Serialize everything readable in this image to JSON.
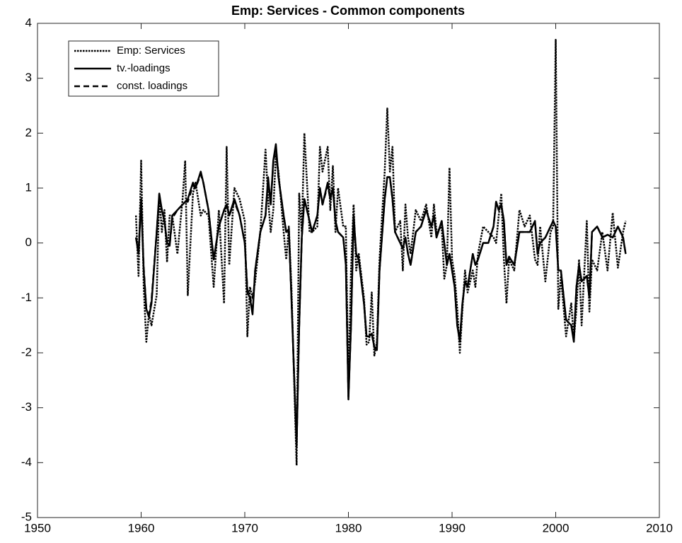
{
  "chart_data": {
    "type": "line",
    "title": "Emp: Services - Common components",
    "x": [
      1959.5,
      1959.75,
      1960,
      1960.25,
      1960.5,
      1960.75,
      1961,
      1961.5,
      1961.75,
      1962,
      1962.25,
      1962.5,
      1962.75,
      1963,
      1963.5,
      1964,
      1964.25,
      1964.5,
      1965,
      1965.25,
      1965.75,
      1966,
      1966.5,
      1967,
      1967.5,
      1968,
      1968.25,
      1968.5,
      1969,
      1969.5,
      1970,
      1970.25,
      1970.5,
      1970.75,
      1971,
      1971.5,
      1972,
      1972.25,
      1972.5,
      1972.75,
      1973,
      1973.25,
      1973.75,
      1974,
      1974.25,
      1974.5,
      1975,
      1975.25,
      1975.5,
      1975.75,
      1976.25,
      1976.5,
      1977,
      1977.25,
      1977.5,
      1978,
      1978.25,
      1978.5,
      1978.75,
      1979,
      1979.5,
      1979.75,
      1980,
      1980.25,
      1980.5,
      1980.75,
      1981,
      1981.5,
      1981.75,
      1982,
      1982.25,
      1982.5,
      1982.75,
      1983,
      1983.5,
      1983.75,
      1984,
      1984.25,
      1984.5,
      1985,
      1985.25,
      1985.5,
      1985.75,
      1986,
      1986.5,
      1987,
      1987.5,
      1988,
      1988.25,
      1988.5,
      1989,
      1989.25,
      1989.5,
      1989.75,
      1990,
      1990.25,
      1990.5,
      1990.75,
      1991,
      1991.25,
      1991.5,
      1992,
      1992.25,
      1992.5,
      1993,
      1993.5,
      1994,
      1994.25,
      1994.5,
      1994.75,
      1995,
      1995.25,
      1995.5,
      1996,
      1996.5,
      1997,
      1997.5,
      1998,
      1998.25,
      1998.5,
      1999,
      1999.5,
      1999.75,
      2000,
      2000.25,
      2000.5,
      2001,
      2001.5,
      2001.75,
      2002,
      2002.25,
      2002.5,
      2003,
      2003.25,
      2003.5,
      2004,
      2004.5,
      2005,
      2005.5,
      2006,
      2006.5,
      2006.75
    ],
    "series": [
      {
        "name": "Emp: Services",
        "color": "#000000",
        "style": "dotted",
        "values": [
          0.5,
          -0.6,
          1.5,
          -0.8,
          -1.8,
          -1.3,
          -1.5,
          -0.95,
          0.9,
          0.2,
          0.6,
          -0.35,
          0.5,
          0.5,
          -0.2,
          0.8,
          1.5,
          -0.95,
          0.9,
          1.1,
          0.5,
          0.6,
          0.5,
          -0.8,
          0.6,
          -1.1,
          1.75,
          -0.4,
          1.0,
          0.8,
          0.4,
          -1.7,
          -0.8,
          -1.0,
          -0.7,
          0.2,
          1.7,
          0.8,
          0.2,
          0.6,
          1.6,
          1.3,
          0.2,
          -0.3,
          0.3,
          -0.8,
          -4.05,
          0.9,
          0.2,
          2.0,
          0.2,
          0.2,
          0.3,
          1.75,
          1.3,
          1.75,
          0.6,
          1.4,
          0.2,
          1.0,
          0.3,
          0.3,
          -2.65,
          -0.5,
          0.7,
          -0.5,
          -0.2,
          -1.0,
          -1.85,
          -1.8,
          -0.9,
          -2.05,
          -1.8,
          -0.3,
          1.3,
          2.45,
          1.3,
          1.75,
          0.2,
          0.4,
          -0.5,
          0.7,
          0.1,
          -0.2,
          0.6,
          0.4,
          0.7,
          0.1,
          0.7,
          0.2,
          0.3,
          -0.65,
          -0.4,
          1.37,
          -0.3,
          -0.6,
          -1.2,
          -2.0,
          -1.2,
          -0.5,
          -0.9,
          -0.5,
          -0.8,
          -0.2,
          0.3,
          0.2,
          0.1,
          0.0,
          0.5,
          0.9,
          -0.3,
          -1.1,
          -0.3,
          -0.5,
          0.6,
          0.3,
          0.5,
          -0.3,
          -0.4,
          0.3,
          -0.7,
          0.2,
          0.3,
          3.7,
          -1.2,
          -0.6,
          -1.7,
          -1.1,
          -1.75,
          -1.2,
          -0.3,
          -1.5,
          0.4,
          -1.25,
          -0.3,
          -0.5,
          0.2,
          -0.5,
          0.55,
          -0.45,
          0.2,
          0.4
        ]
      },
      {
        "name": "tv.-loadings",
        "color": "#000000",
        "style": "solid",
        "values": [
          0.1,
          -0.2,
          0.8,
          -0.5,
          -1.2,
          -1.35,
          -1.1,
          0.2,
          0.9,
          0.6,
          0.4,
          0.0,
          -0.05,
          0.5,
          0.6,
          0.7,
          0.75,
          0.8,
          1.1,
          1.0,
          1.3,
          1.1,
          0.6,
          -0.3,
          0.3,
          0.6,
          0.7,
          0.5,
          0.8,
          0.5,
          0.0,
          -0.9,
          -1.0,
          -1.3,
          -0.5,
          0.2,
          0.5,
          1.2,
          0.7,
          1.5,
          1.8,
          1.2,
          0.5,
          0.2,
          0.25,
          -1.0,
          -3.7,
          -1.5,
          0.1,
          0.8,
          0.4,
          0.2,
          0.5,
          1.0,
          0.7,
          1.1,
          0.8,
          1.0,
          0.4,
          0.2,
          0.1,
          -0.4,
          -2.85,
          -1.5,
          0.5,
          -0.2,
          -0.3,
          -1.1,
          -1.7,
          -1.7,
          -1.65,
          -1.9,
          -1.95,
          -0.5,
          0.8,
          1.2,
          1.2,
          0.8,
          0.2,
          0.0,
          -0.1,
          0.1,
          -0.2,
          -0.4,
          0.2,
          0.3,
          0.6,
          0.3,
          0.5,
          0.1,
          0.4,
          0.0,
          -0.4,
          -0.2,
          -0.5,
          -0.8,
          -1.5,
          -1.8,
          -1.1,
          -0.7,
          -0.8,
          -0.2,
          -0.4,
          -0.3,
          0.0,
          0.0,
          0.3,
          0.75,
          0.6,
          0.7,
          0.4,
          -0.4,
          -0.25,
          -0.4,
          0.2,
          0.2,
          0.2,
          0.4,
          -0.2,
          0.0,
          0.1,
          0.3,
          0.4,
          0.3,
          -0.5,
          -0.5,
          -1.4,
          -1.5,
          -1.8,
          -0.8,
          -0.4,
          -0.7,
          -0.6,
          -1.0,
          0.2,
          0.3,
          0.1,
          0.15,
          0.1,
          0.3,
          0.1,
          -0.2
        ]
      },
      {
        "name": "const. loadings",
        "color": "#000000",
        "style": "dashed",
        "values": [
          0.1,
          -0.15,
          0.75,
          -0.45,
          -1.2,
          -1.3,
          -1.05,
          0.2,
          0.85,
          0.6,
          0.4,
          0.0,
          -0.05,
          0.45,
          0.6,
          0.7,
          0.75,
          0.75,
          1.05,
          1.0,
          1.25,
          1.1,
          0.6,
          -0.3,
          0.3,
          0.6,
          0.7,
          0.5,
          0.75,
          0.5,
          0.0,
          -0.85,
          -0.95,
          -1.25,
          -0.5,
          0.2,
          0.5,
          1.15,
          0.7,
          1.45,
          1.75,
          1.2,
          0.5,
          0.2,
          0.25,
          -1.0,
          -3.65,
          -1.5,
          0.1,
          0.8,
          0.4,
          0.2,
          0.5,
          1.0,
          0.7,
          1.05,
          0.8,
          1.0,
          0.4,
          0.2,
          0.1,
          -0.35,
          -2.8,
          -1.5,
          0.5,
          -0.2,
          -0.3,
          -1.1,
          -1.7,
          -1.7,
          -1.65,
          -1.9,
          -1.9,
          -0.5,
          0.8,
          1.2,
          1.2,
          0.8,
          0.2,
          0.0,
          -0.1,
          0.1,
          -0.2,
          -0.4,
          0.2,
          0.3,
          0.6,
          0.3,
          0.5,
          0.1,
          0.4,
          0.0,
          -0.4,
          -0.2,
          -0.5,
          -0.8,
          -1.5,
          -1.75,
          -1.1,
          -0.7,
          -0.8,
          -0.2,
          -0.4,
          -0.3,
          0.0,
          0.0,
          0.3,
          0.75,
          0.6,
          0.7,
          0.4,
          -0.4,
          -0.25,
          -0.4,
          0.2,
          0.2,
          0.2,
          0.4,
          -0.2,
          0.0,
          0.1,
          0.3,
          0.4,
          0.3,
          -0.5,
          -0.5,
          -1.4,
          -1.5,
          -1.75,
          -0.8,
          -0.4,
          -0.7,
          -0.6,
          -1.0,
          0.2,
          0.3,
          0.1,
          0.15,
          0.1,
          0.3,
          0.1,
          -0.2
        ]
      }
    ],
    "xlim": [
      1950,
      2010
    ],
    "xticks": [
      1950,
      1960,
      1970,
      1980,
      1990,
      2000,
      2010
    ],
    "ylim": [
      -5,
      4
    ],
    "yticks": [
      -5,
      -4,
      -3,
      -2,
      -1,
      0,
      1,
      2,
      3,
      4
    ],
    "grid": false,
    "legend": "upper left"
  }
}
